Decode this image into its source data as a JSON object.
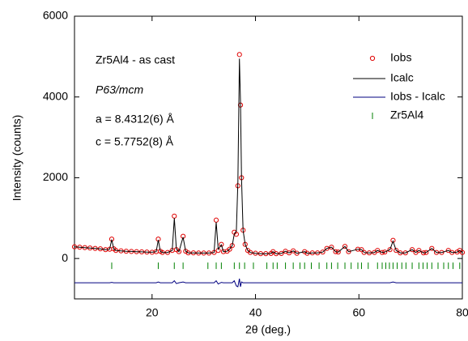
{
  "chart_data": {
    "type": "rietveld",
    "xlabel": "2θ (deg.)",
    "ylabel": "Intensity (counts)",
    "xlim": [
      5,
      80
    ],
    "ylim": [
      -1000,
      6000
    ],
    "xticks": [
      20,
      40,
      60,
      80
    ],
    "yticks": [
      0,
      2000,
      4000,
      6000
    ],
    "annotations": [
      "Zr5Al4 - as cast",
      "P63/mcm",
      "a = 8.4312(6) Å",
      "c = 5.7752(8) Å"
    ],
    "x": [
      5,
      6,
      7,
      8,
      9,
      10,
      11,
      11.8,
      12.2,
      12.6,
      13,
      14,
      15,
      16,
      17,
      18,
      19,
      20,
      20.8,
      21.2,
      21.6,
      22,
      23,
      23.9,
      24.3,
      24.7,
      25.2,
      26,
      26.5,
      27,
      28,
      29,
      30,
      31,
      32,
      32.4,
      32.8,
      33.4,
      33.8,
      34.5,
      35,
      35.5,
      35.9,
      36.3,
      36.6,
      36.9,
      37.1,
      37.3,
      37.6,
      38,
      38.5,
      39,
      40,
      41,
      42,
      43,
      43.4,
      44,
      45,
      45.8,
      46.5,
      47.3,
      48,
      49.5,
      50,
      51,
      52,
      53,
      53.8,
      54.7,
      55.5,
      56,
      57.3,
      58,
      59.8,
      60.5,
      61,
      62,
      63,
      63.6,
      64.5,
      65,
      66,
      66.6,
      67.2,
      68,
      69,
      70.3,
      71,
      71.6,
      72.5,
      73,
      74.1,
      75,
      76,
      77.3,
      78,
      79,
      79.5,
      80
    ],
    "series": [
      {
        "name": "Iobs",
        "kind": "points",
        "color": "#e00000",
        "values": [
          290,
          280,
          270,
          260,
          250,
          240,
          220,
          230,
          480,
          240,
          200,
          190,
          180,
          175,
          170,
          165,
          160,
          155,
          170,
          480,
          180,
          150,
          150,
          200,
          1050,
          220,
          170,
          550,
          180,
          140,
          140,
          135,
          135,
          135,
          150,
          950,
          200,
          350,
          170,
          180,
          230,
          320,
          650,
          600,
          1800,
          5050,
          3800,
          2000,
          700,
          350,
          200,
          150,
          130,
          120,
          120,
          125,
          170,
          120,
          125,
          180,
          140,
          190,
          130,
          170,
          130,
          140,
          140,
          160,
          250,
          280,
          170,
          160,
          300,
          170,
          230,
          220,
          150,
          140,
          150,
          200,
          150,
          160,
          220,
          450,
          200,
          140,
          140,
          220,
          150,
          200,
          140,
          150,
          250,
          150,
          150,
          200,
          150,
          160,
          200,
          150
        ]
      },
      {
        "name": "Icalc",
        "kind": "line",
        "color": "#000000",
        "values": [
          290,
          280,
          270,
          260,
          250,
          240,
          220,
          230,
          470,
          240,
          200,
          190,
          180,
          175,
          170,
          165,
          160,
          155,
          170,
          460,
          180,
          150,
          150,
          200,
          1000,
          240,
          170,
          530,
          180,
          140,
          140,
          135,
          135,
          135,
          150,
          900,
          230,
          340,
          170,
          180,
          230,
          320,
          600,
          680,
          1900,
          4950,
          3900,
          1980,
          700,
          350,
          200,
          150,
          130,
          120,
          120,
          125,
          170,
          120,
          125,
          180,
          140,
          190,
          130,
          170,
          130,
          140,
          140,
          160,
          250,
          280,
          170,
          160,
          300,
          170,
          230,
          220,
          150,
          140,
          150,
          200,
          150,
          160,
          220,
          430,
          200,
          140,
          140,
          220,
          150,
          200,
          140,
          150,
          250,
          150,
          150,
          200,
          150,
          160,
          200,
          150
        ]
      },
      {
        "name": "Iobs - Icalc",
        "kind": "line",
        "color": "#000080",
        "values": [
          -600,
          -600,
          -600,
          -600,
          -600,
          -600,
          -600,
          -600,
          -590,
          -600,
          -600,
          -600,
          -600,
          -600,
          -600,
          -600,
          -600,
          -600,
          -600,
          -580,
          -600,
          -600,
          -600,
          -600,
          -550,
          -620,
          -600,
          -580,
          -600,
          -600,
          -600,
          -600,
          -600,
          -600,
          -600,
          -550,
          -630,
          -590,
          -600,
          -600,
          -600,
          -600,
          -550,
          -680,
          -700,
          -500,
          -700,
          -580,
          -600,
          -600,
          -600,
          -600,
          -600,
          -600,
          -600,
          -600,
          -600,
          -600,
          -600,
          -600,
          -600,
          -600,
          -600,
          -600,
          -600,
          -600,
          -600,
          -600,
          -600,
          -600,
          -600,
          -600,
          -600,
          -600,
          -600,
          -600,
          -600,
          -600,
          -600,
          -600,
          -600,
          -600,
          -600,
          -580,
          -600,
          -600,
          -600,
          -600,
          -600,
          -600,
          -600,
          -600,
          -600,
          -600,
          -600,
          -600,
          -600,
          -600,
          -600,
          -600
        ]
      },
      {
        "name": "Zr5Al4",
        "kind": "ticks",
        "color": "#008000",
        "x": [
          12.2,
          21.2,
          24.3,
          26.0,
          30.8,
          32.4,
          33.4,
          35.9,
          36.9,
          37.9,
          39.6,
          42.2,
          43.4,
          44.2,
          45.8,
          47.3,
          48.6,
          49.5,
          50.8,
          52.3,
          53.8,
          54.7,
          55.9,
          57.3,
          58.5,
          59.8,
          60.5,
          61.8,
          63.6,
          64.5,
          65.2,
          65.9,
          66.6,
          67.4,
          68.3,
          69.1,
          70.3,
          71.6,
          72.4,
          73.2,
          74.1,
          75.3,
          76.4,
          77.3,
          78.2,
          79.5
        ],
        "values": [
          -180,
          -180,
          -180,
          -180,
          -180,
          -180,
          -180,
          -180,
          -180,
          -180,
          -180,
          -180,
          -180,
          -180,
          -180,
          -180,
          -180,
          -180,
          -180,
          -180,
          -180,
          -180,
          -180,
          -180,
          -180,
          -180,
          -180,
          -180,
          -180,
          -180,
          -180,
          -180,
          -180,
          -180,
          -180,
          -180,
          -180,
          -180,
          -180,
          -180,
          -180,
          -180,
          -180,
          -180,
          -180,
          -180
        ]
      }
    ]
  }
}
